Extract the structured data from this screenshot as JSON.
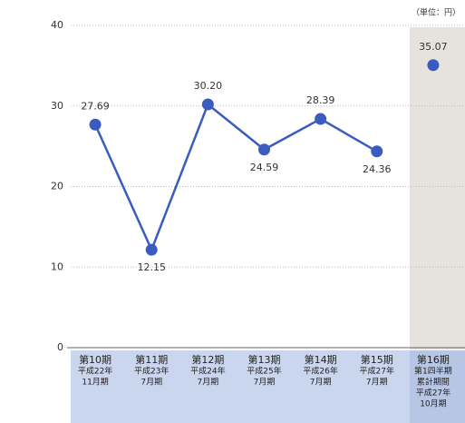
{
  "chart_data": {
    "type": "line",
    "unit_label": "（単位：円）",
    "categories": [
      [
        "第10期",
        "平成22年",
        "11月期"
      ],
      [
        "第11期",
        "平成23年",
        "7月期"
      ],
      [
        "第12期",
        "平成24年",
        "7月期"
      ],
      [
        "第13期",
        "平成25年",
        "7月期"
      ],
      [
        "第14期",
        "平成26年",
        "7月期"
      ],
      [
        "第15期",
        "平成27年",
        "7月期"
      ],
      [
        "第16期",
        "第1四半期",
        "累計期間",
        "平成27年",
        "10月期"
      ]
    ],
    "series": [
      {
        "color": "#3a5bbf",
        "values": [
          27.69,
          12.15,
          30.2,
          24.59,
          28.39,
          24.36,
          null
        ],
        "value_labels": [
          "27.69",
          "12.15",
          "30.20",
          "24.59",
          "28.39",
          "24.36",
          null
        ]
      },
      {
        "color": "#3a5bbf",
        "values": [
          null,
          null,
          null,
          null,
          null,
          null,
          35.07
        ],
        "value_labels": [
          null,
          null,
          null,
          null,
          null,
          null,
          "35.07"
        ]
      }
    ],
    "ylim": [
      0,
      40
    ],
    "yticks": [
      0,
      10,
      20,
      30,
      40
    ],
    "grid": true
  }
}
